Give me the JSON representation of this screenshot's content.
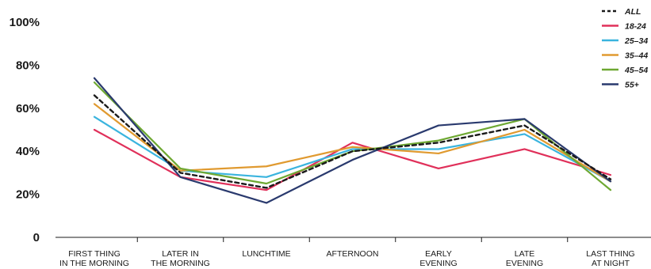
{
  "chart_data": {
    "type": "line",
    "categories": [
      [
        "FIRST THING",
        "IN THE MORNING"
      ],
      [
        "LATER IN",
        "THE MORNING"
      ],
      [
        "LUNCHTIME"
      ],
      [
        "AFTERNOON"
      ],
      [
        "EARLY",
        "EVENING"
      ],
      [
        "LATE",
        "EVENING"
      ],
      [
        "LAST THING",
        "AT NIGHT"
      ]
    ],
    "y_ticks": [
      {
        "value": 0,
        "label": "0"
      },
      {
        "value": 20,
        "label": "20%"
      },
      {
        "value": 40,
        "label": "40%"
      },
      {
        "value": 60,
        "label": "60%"
      },
      {
        "value": 80,
        "label": "80%"
      },
      {
        "value": 100,
        "label": "100%"
      }
    ],
    "ylim": [
      0,
      100
    ],
    "grid": false,
    "legend_position": "top-right",
    "series": [
      {
        "name": "ALL",
        "color": "#1a1a1a",
        "dashed": true,
        "values": [
          66,
          30,
          23,
          40,
          44,
          52,
          27
        ]
      },
      {
        "name": "18-24",
        "color": "#e0305a",
        "dashed": false,
        "values": [
          50,
          28,
          22,
          44,
          32,
          41,
          29
        ]
      },
      {
        "name": "25–34",
        "color": "#3ab4de",
        "dashed": false,
        "values": [
          56,
          31,
          28,
          41,
          41,
          48,
          26
        ]
      },
      {
        "name": "35–44",
        "color": "#e09a30",
        "dashed": false,
        "values": [
          62,
          31,
          33,
          42,
          39,
          50,
          26
        ]
      },
      {
        "name": "45–54",
        "color": "#6ea832",
        "dashed": false,
        "values": [
          72,
          32,
          25,
          40,
          45,
          55,
          22
        ]
      },
      {
        "name": "55+",
        "color": "#2a3a6e",
        "dashed": false,
        "values": [
          74,
          28,
          16,
          36,
          52,
          55,
          26
        ]
      }
    ]
  }
}
